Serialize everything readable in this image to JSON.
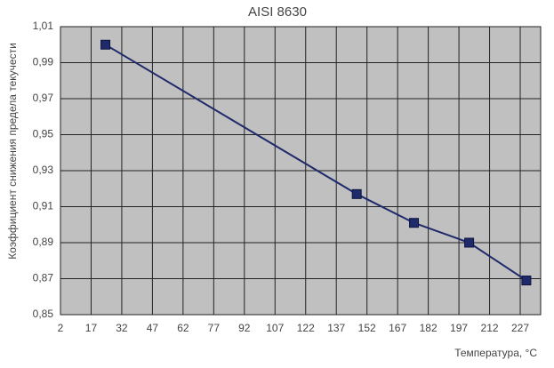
{
  "chart_data": {
    "type": "line",
    "title": "AISI 8630",
    "x_label": "Температура, °C",
    "y_label": "Коэффициент снижения предела текучести",
    "x": [
      24,
      147,
      175,
      202,
      230
    ],
    "series": [
      {
        "color": "#1f2a6b",
        "values": [
          1.0,
          0.917,
          0.901,
          0.89,
          0.869
        ]
      }
    ],
    "xlim": [
      2,
      237
    ],
    "xticks": [
      2,
      17,
      32,
      47,
      62,
      77,
      92,
      107,
      122,
      137,
      152,
      167,
      182,
      197,
      212,
      227
    ],
    "ylim": [
      0.85,
      1.01
    ],
    "yticks": [
      {
        "value": 0.85,
        "label": "0,85"
      },
      {
        "value": 0.87,
        "label": "0,87"
      },
      {
        "value": 0.89,
        "label": "0,89"
      },
      {
        "value": 0.91,
        "label": "0,91"
      },
      {
        "value": 0.93,
        "label": "0,93"
      },
      {
        "value": 0.95,
        "label": "0,95"
      },
      {
        "value": 0.97,
        "label": "0,97"
      },
      {
        "value": 0.99,
        "label": "0,99"
      },
      {
        "value": 1.01,
        "label": "1,01"
      }
    ],
    "grid": true,
    "plot_background": "#c0c0c0"
  }
}
